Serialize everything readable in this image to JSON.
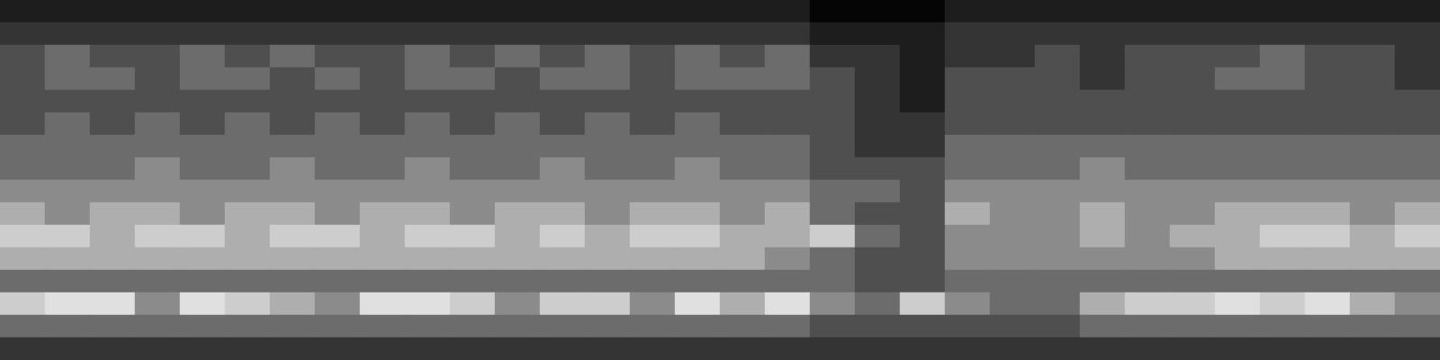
{
  "chart_data": {
    "type": "heatmap",
    "tick_labels": false,
    "grid": false,
    "value_range": [
      0,
      9
    ],
    "cells": [
      [
        1,
        1,
        1,
        1,
        1,
        1,
        1,
        1,
        1,
        1,
        1,
        1,
        1,
        1,
        1,
        1,
        1,
        1,
        0,
        0,
        0,
        1,
        1,
        1,
        1,
        1,
        1,
        1,
        1,
        1,
        1,
        1
      ],
      [
        2,
        2,
        2,
        2,
        2,
        2,
        2,
        2,
        2,
        2,
        2,
        2,
        2,
        2,
        2,
        2,
        2,
        2,
        1,
        1,
        1,
        2,
        2,
        2,
        2,
        2,
        2,
        2,
        2,
        2,
        2,
        2
      ],
      [
        3,
        4,
        3,
        3,
        4,
        3,
        4,
        3,
        3,
        4,
        3,
        4,
        3,
        4,
        3,
        4,
        3,
        4,
        2,
        2,
        1,
        2,
        2,
        3,
        2,
        3,
        3,
        3,
        4,
        3,
        3,
        2
      ],
      [
        3,
        4,
        4,
        3,
        4,
        4,
        3,
        4,
        3,
        4,
        4,
        3,
        4,
        4,
        3,
        4,
        4,
        4,
        3,
        2,
        1,
        3,
        3,
        3,
        2,
        3,
        3,
        4,
        4,
        3,
        3,
        2
      ],
      [
        3,
        3,
        3,
        3,
        3,
        3,
        3,
        3,
        3,
        3,
        3,
        3,
        3,
        3,
        3,
        3,
        3,
        3,
        3,
        2,
        1,
        3,
        3,
        3,
        3,
        3,
        3,
        3,
        3,
        3,
        3,
        3
      ],
      [
        3,
        4,
        3,
        4,
        3,
        4,
        3,
        4,
        3,
        4,
        3,
        4,
        3,
        4,
        3,
        4,
        3,
        3,
        3,
        2,
        2,
        3,
        3,
        3,
        3,
        3,
        3,
        3,
        3,
        3,
        3,
        3
      ],
      [
        4,
        4,
        4,
        4,
        4,
        4,
        4,
        4,
        4,
        4,
        4,
        4,
        4,
        4,
        4,
        4,
        4,
        4,
        3,
        2,
        2,
        4,
        4,
        4,
        4,
        4,
        4,
        4,
        4,
        4,
        4,
        4
      ],
      [
        4,
        4,
        4,
        5,
        4,
        4,
        5,
        4,
        4,
        5,
        4,
        4,
        5,
        4,
        4,
        5,
        4,
        4,
        3,
        3,
        3,
        4,
        4,
        4,
        5,
        4,
        4,
        4,
        4,
        4,
        4,
        4
      ],
      [
        5,
        5,
        5,
        5,
        5,
        5,
        5,
        5,
        5,
        5,
        5,
        5,
        5,
        5,
        5,
        5,
        5,
        5,
        4,
        4,
        3,
        5,
        5,
        5,
        5,
        5,
        5,
        5,
        5,
        5,
        5,
        5
      ],
      [
        6,
        5,
        6,
        6,
        5,
        6,
        6,
        5,
        6,
        6,
        5,
        6,
        6,
        5,
        6,
        6,
        5,
        6,
        4,
        3,
        3,
        6,
        5,
        5,
        6,
        5,
        5,
        6,
        6,
        6,
        5,
        6
      ],
      [
        7,
        7,
        6,
        7,
        7,
        6,
        7,
        7,
        6,
        7,
        7,
        6,
        7,
        6,
        7,
        7,
        6,
        6,
        7,
        4,
        3,
        5,
        5,
        5,
        6,
        5,
        6,
        6,
        7,
        7,
        6,
        7
      ],
      [
        6,
        6,
        6,
        6,
        6,
        6,
        6,
        6,
        6,
        6,
        6,
        6,
        6,
        6,
        6,
        6,
        6,
        5,
        4,
        3,
        3,
        5,
        5,
        5,
        5,
        5,
        5,
        6,
        6,
        6,
        6,
        6
      ],
      [
        4,
        4,
        4,
        4,
        4,
        4,
        4,
        4,
        4,
        4,
        4,
        4,
        4,
        4,
        4,
        4,
        4,
        4,
        4,
        3,
        3,
        4,
        4,
        4,
        4,
        4,
        4,
        4,
        4,
        4,
        4,
        4
      ],
      [
        7,
        8,
        8,
        5,
        8,
        7,
        6,
        5,
        8,
        8,
        7,
        5,
        7,
        7,
        5,
        8,
        6,
        8,
        5,
        4,
        7,
        5,
        4,
        4,
        6,
        7,
        7,
        8,
        7,
        8,
        6,
        5
      ],
      [
        4,
        4,
        4,
        4,
        4,
        4,
        4,
        4,
        4,
        4,
        4,
        4,
        4,
        4,
        4,
        4,
        4,
        4,
        3,
        3,
        3,
        3,
        3,
        3,
        4,
        4,
        4,
        4,
        4,
        4,
        4,
        4
      ],
      [
        2,
        2,
        2,
        2,
        2,
        2,
        2,
        2,
        2,
        2,
        2,
        2,
        2,
        2,
        2,
        2,
        2,
        2,
        2,
        2,
        2,
        2,
        2,
        2,
        2,
        2,
        2,
        2,
        2,
        2,
        2,
        2
      ]
    ]
  }
}
